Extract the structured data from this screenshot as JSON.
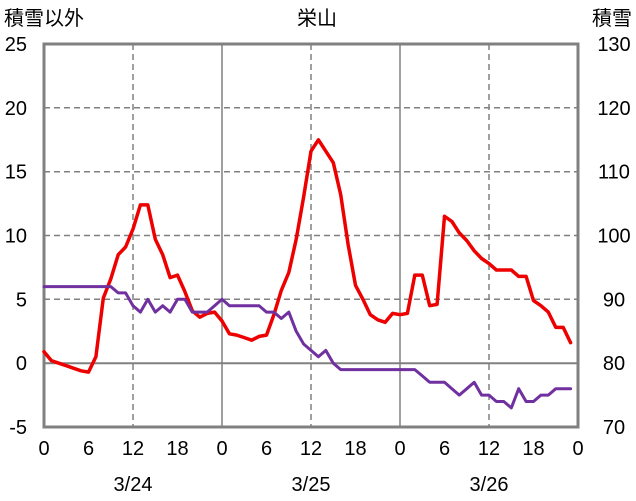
{
  "chart_data": {
    "type": "line",
    "title": "栄山",
    "ylabel_left": "積雪以外",
    "ylabel_right": "積雪",
    "xlim": [
      "3/24 00:00",
      "3/27 00:00"
    ],
    "ylim_left": [
      -5,
      25
    ],
    "ylim_right": [
      70,
      130
    ],
    "yticks_left": [
      -5,
      0,
      5,
      10,
      15,
      20,
      25
    ],
    "yticks_right": [
      70,
      80,
      90,
      100,
      110,
      120,
      130
    ],
    "xticks": [
      {
        "at": "3/24 00:00",
        "label": "0"
      },
      {
        "at": "3/24 06:00",
        "label": "6"
      },
      {
        "at": "3/24 12:00",
        "label": "12"
      },
      {
        "at": "3/24 18:00",
        "label": "18"
      },
      {
        "at": "3/25 00:00",
        "label": "0"
      },
      {
        "at": "3/25 06:00",
        "label": "6"
      },
      {
        "at": "3/25 12:00",
        "label": "12"
      },
      {
        "at": "3/25 18:00",
        "label": "18"
      },
      {
        "at": "3/26 00:00",
        "label": "0"
      },
      {
        "at": "3/26 06:00",
        "label": "6"
      },
      {
        "at": "3/26 12:00",
        "label": "12"
      },
      {
        "at": "3/26 18:00",
        "label": "18"
      },
      {
        "at": "3/27 00:00",
        "label": "0"
      }
    ],
    "date_labels": [
      {
        "at": "3/24 12:00",
        "label": "3/24"
      },
      {
        "at": "3/25 12:00",
        "label": "3/25"
      },
      {
        "at": "3/26 12:00",
        "label": "3/26"
      }
    ],
    "grid": true,
    "x": [
      "3/24 00:00",
      "3/24 01:00",
      "3/24 02:00",
      "3/24 03:00",
      "3/24 04:00",
      "3/24 05:00",
      "3/24 06:00",
      "3/24 07:00",
      "3/24 08:00",
      "3/24 09:00",
      "3/24 10:00",
      "3/24 11:00",
      "3/24 12:00",
      "3/24 13:00",
      "3/24 14:00",
      "3/24 15:00",
      "3/24 16:00",
      "3/24 17:00",
      "3/24 18:00",
      "3/24 19:00",
      "3/24 20:00",
      "3/24 21:00",
      "3/24 22:00",
      "3/24 23:00",
      "3/25 00:00",
      "3/25 01:00",
      "3/25 02:00",
      "3/25 03:00",
      "3/25 04:00",
      "3/25 05:00",
      "3/25 06:00",
      "3/25 07:00",
      "3/25 08:00",
      "3/25 09:00",
      "3/25 10:00",
      "3/25 11:00",
      "3/25 12:00",
      "3/25 13:00",
      "3/25 14:00",
      "3/25 15:00",
      "3/25 16:00",
      "3/25 17:00",
      "3/25 18:00",
      "3/25 19:00",
      "3/25 20:00",
      "3/25 21:00",
      "3/25 22:00",
      "3/25 23:00",
      "3/26 00:00",
      "3/26 01:00",
      "3/26 02:00",
      "3/26 03:00",
      "3/26 04:00",
      "3/26 05:00",
      "3/26 06:00",
      "3/26 07:00",
      "3/26 08:00",
      "3/26 09:00",
      "3/26 10:00",
      "3/26 11:00",
      "3/26 12:00",
      "3/26 13:00",
      "3/26 14:00",
      "3/26 15:00",
      "3/26 16:00",
      "3/26 17:00",
      "3/26 18:00",
      "3/26 19:00",
      "3/26 20:00",
      "3/26 21:00",
      "3/26 22:00",
      "3/26 23:00"
    ],
    "series": [
      {
        "axis": "left",
        "color": "#ee0000",
        "values": [
          0.9,
          0.2,
          0.0,
          -0.2,
          -0.4,
          -0.6,
          -0.7,
          0.5,
          5.1,
          6.6,
          8.5,
          9.1,
          10.5,
          12.4,
          12.4,
          9.7,
          8.5,
          6.7,
          6.9,
          5.6,
          4.1,
          3.6,
          3.9,
          4.0,
          3.3,
          2.3,
          2.2,
          2.0,
          1.8,
          2.1,
          2.2,
          3.8,
          5.7,
          7.1,
          9.7,
          13.0,
          16.6,
          17.5,
          16.6,
          15.7,
          13.2,
          9.3,
          6.1,
          5.0,
          3.8,
          3.4,
          3.2,
          3.9,
          3.8,
          3.9,
          6.9,
          6.9,
          4.5,
          4.6,
          11.5,
          11.1,
          10.2,
          9.6,
          8.8,
          8.2,
          7.8,
          7.3,
          7.3,
          7.3,
          6.8,
          6.8,
          4.9,
          4.5,
          4.0,
          2.8,
          2.8,
          1.6
        ]
      },
      {
        "axis": "right",
        "color": "#7030a0",
        "values": [
          92,
          92,
          92,
          92,
          92,
          92,
          92,
          92,
          92,
          92,
          91,
          91,
          89,
          88,
          90,
          88,
          89,
          88,
          90,
          90,
          88,
          88,
          88,
          89,
          90,
          89,
          89,
          89,
          89,
          89,
          88,
          88,
          87,
          88,
          85,
          83,
          82,
          81,
          82,
          80,
          79,
          79,
          79,
          79,
          79,
          79,
          79,
          79,
          79,
          79,
          79,
          78,
          77,
          77,
          77,
          76,
          75,
          76,
          77,
          75,
          75,
          74,
          74,
          73,
          76,
          74,
          74,
          75,
          75,
          76,
          76,
          76
        ]
      }
    ]
  }
}
